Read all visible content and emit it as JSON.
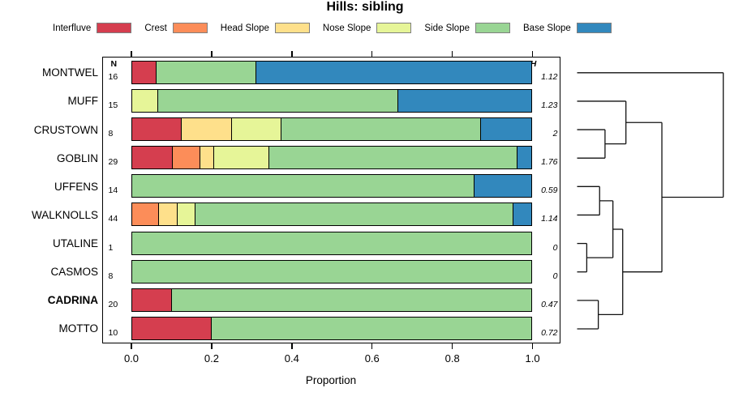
{
  "title": "Hills: sibling",
  "chart_data": {
    "type": "bar",
    "variant": "horizontal-stacked-proportion-with-dendrogram",
    "title": "Hills: sibling",
    "xlabel": "Proportion",
    "xlim": [
      0,
      1
    ],
    "x_ticks": [
      "0.0",
      "0.2",
      "0.4",
      "0.6",
      "0.8",
      "1.0"
    ],
    "x_tick_values": [
      0,
      0.2,
      0.4,
      0.6,
      0.8,
      1.0
    ],
    "n_header": "N",
    "h_header": "H",
    "legend_position": "top",
    "categories": [
      {
        "label": "Interfluve",
        "color": "#D53E4F"
      },
      {
        "label": "Crest",
        "color": "#FC8D59"
      },
      {
        "label": "Head Slope",
        "color": "#FEE08B"
      },
      {
        "label": "Nose Slope",
        "color": "#E6F598"
      },
      {
        "label": "Side Slope",
        "color": "#99D594"
      },
      {
        "label": "Base Slope",
        "color": "#3288BD"
      }
    ],
    "rows": [
      {
        "label": "MONTWEL",
        "n": "16",
        "h": "1.12",
        "bold": false,
        "segments": [
          [
            "Interfluve",
            0.0625
          ],
          [
            "Side Slope",
            0.25
          ],
          [
            "Base Slope",
            0.6875
          ]
        ]
      },
      {
        "label": "MUFF",
        "n": "15",
        "h": "1.23",
        "bold": false,
        "segments": [
          [
            "Nose Slope",
            0.0667
          ],
          [
            "Side Slope",
            0.6
          ],
          [
            "Base Slope",
            0.3333
          ]
        ]
      },
      {
        "label": "CRUSTOWN",
        "n": "8",
        "h": "2",
        "bold": false,
        "segments": [
          [
            "Interfluve",
            0.125
          ],
          [
            "Head Slope",
            0.125
          ],
          [
            "Nose Slope",
            0.125
          ],
          [
            "Side Slope",
            0.5
          ],
          [
            "Base Slope",
            0.125
          ]
        ]
      },
      {
        "label": "GOBLIN",
        "n": "29",
        "h": "1.76",
        "bold": false,
        "segments": [
          [
            "Interfluve",
            0.1034
          ],
          [
            "Crest",
            0.069
          ],
          [
            "Head Slope",
            0.0345
          ],
          [
            "Nose Slope",
            0.1379
          ],
          [
            "Side Slope",
            0.6207
          ],
          [
            "Base Slope",
            0.0345
          ]
        ]
      },
      {
        "label": "UFFENS",
        "n": "14",
        "h": "0.59",
        "bold": false,
        "segments": [
          [
            "Side Slope",
            0.8571
          ],
          [
            "Base Slope",
            0.1429
          ]
        ]
      },
      {
        "label": "WALKNOLLS",
        "n": "44",
        "h": "1.14",
        "bold": false,
        "segments": [
          [
            "Crest",
            0.0682
          ],
          [
            "Head Slope",
            0.0455
          ],
          [
            "Nose Slope",
            0.0455
          ],
          [
            "Side Slope",
            0.7953
          ],
          [
            "Base Slope",
            0.0455
          ]
        ]
      },
      {
        "label": "UTALINE",
        "n": "1",
        "h": "0",
        "bold": false,
        "segments": [
          [
            "Side Slope",
            1.0
          ]
        ]
      },
      {
        "label": "CASMOS",
        "n": "8",
        "h": "0",
        "bold": false,
        "segments": [
          [
            "Side Slope",
            1.0
          ]
        ]
      },
      {
        "label": "CADRINA",
        "n": "20",
        "h": "0.47",
        "bold": true,
        "segments": [
          [
            "Interfluve",
            0.1
          ],
          [
            "Side Slope",
            0.9
          ]
        ]
      },
      {
        "label": "MOTTO",
        "n": "10",
        "h": "0.72",
        "bold": false,
        "segments": [
          [
            "Interfluve",
            0.2
          ],
          [
            "Side Slope",
            0.8
          ]
        ]
      }
    ],
    "dendrogram": {
      "h": 1.0,
      "children": [
        "MONTWEL",
        {
          "h": 0.58,
          "children": [
            {
              "h": 0.334,
              "children": [
                "MUFF",
                {
                  "h": 0.191,
                  "children": [
                    "CRUSTOWN",
                    "GOBLIN"
                  ]
                }
              ]
            },
            {
              "h": 0.312,
              "children": [
                {
                  "h": 0.245,
                  "children": [
                    {
                      "h": 0.154,
                      "children": [
                        "UFFENS",
                        "WALKNOLLS"
                      ]
                    },
                    {
                      "h": 0.066,
                      "children": [
                        "UTALINE",
                        "CASMOS"
                      ]
                    }
                  ]
                },
                {
                  "h": 0.145,
                  "children": [
                    "CADRINA",
                    "MOTTO"
                  ]
                }
              ]
            }
          ]
        }
      ]
    }
  }
}
